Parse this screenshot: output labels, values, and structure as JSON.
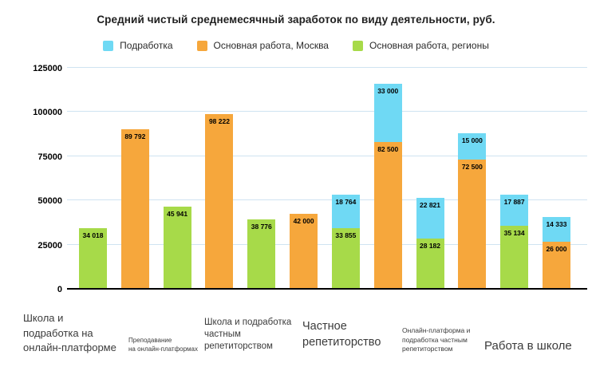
{
  "title": "Средний чистый среднемесячный заработок по виду деятельности, руб.",
  "chart_data": {
    "type": "bar",
    "stacked": true,
    "title": "Средний чистый среднемесячный заработок по виду деятельности, руб.",
    "xlabel": "",
    "ylabel": "",
    "ylim": [
      0,
      125000
    ],
    "yticks": [
      0,
      25000,
      50000,
      75000,
      100000,
      125000
    ],
    "grid": true,
    "legend_position": "top",
    "series": [
      {
        "name": "Подработка",
        "color": "#6fd9f4"
      },
      {
        "name": "Основная работа, Москва",
        "color": "#f6a73c"
      },
      {
        "name": "Основная работа, регионы",
        "color": "#a7da49"
      }
    ],
    "groups": [
      {
        "category": "Школа и\nподработка на\nонлайн-платформе",
        "bars": [
          {
            "segments": [
              {
                "series": "Основная работа, регионы",
                "value": 34018,
                "label": "34 018"
              }
            ]
          },
          {
            "segments": [
              {
                "series": "Основная работа, Москва",
                "value": 89792,
                "label": "89 792"
              }
            ]
          }
        ]
      },
      {
        "category": "Преподавание\nна онлайн-платформах",
        "bars": [
          {
            "segments": [
              {
                "series": "Основная работа, регионы",
                "value": 45941,
                "label": "45 941"
              }
            ]
          },
          {
            "segments": [
              {
                "series": "Основная работа, Москва",
                "value": 98222,
                "label": "98 222"
              }
            ]
          }
        ]
      },
      {
        "category": "Школа и подработка\nчастным\nрепетиторством",
        "bars": [
          {
            "segments": [
              {
                "series": "Основная работа, регионы",
                "value": 38776,
                "label": "38 776"
              }
            ]
          },
          {
            "segments": [
              {
                "series": "Основная работа, Москва",
                "value": 42000,
                "label": "42 000"
              }
            ]
          }
        ]
      },
      {
        "category": "Частное\nрепетиторство",
        "bars": [
          {
            "segments": [
              {
                "series": "Основная работа, регионы",
                "value": 33855,
                "label": "33 855"
              },
              {
                "series": "Подработка",
                "value": 18764,
                "label": "18 764"
              }
            ]
          },
          {
            "segments": [
              {
                "series": "Основная работа, Москва",
                "value": 82500,
                "label": "82 500"
              },
              {
                "series": "Подработка",
                "value": 33000,
                "label": "33 000"
              }
            ]
          }
        ]
      },
      {
        "category": "Онлайн-платформа и\nподработка частным\nрепетиторством",
        "bars": [
          {
            "segments": [
              {
                "series": "Основная работа, регионы",
                "value": 28182,
                "label": "28 182"
              },
              {
                "series": "Подработка",
                "value": 22821,
                "label": "22 821"
              }
            ]
          },
          {
            "segments": [
              {
                "series": "Основная работа, Москва",
                "value": 72500,
                "label": "72 500"
              },
              {
                "series": "Подработка",
                "value": 15000,
                "label": "15 000"
              }
            ]
          }
        ]
      },
      {
        "category": "Работа в школе",
        "bars": [
          {
            "segments": [
              {
                "series": "Основная работа, регионы",
                "value": 35134,
                "label": "35 134"
              },
              {
                "series": "Подработка",
                "value": 17887,
                "label": "17 887"
              }
            ]
          },
          {
            "segments": [
              {
                "series": "Основная работа, Москва",
                "value": 26000,
                "label": "26 000"
              },
              {
                "series": "Подработка",
                "value": 14333,
                "label": "14 333"
              }
            ]
          }
        ]
      }
    ]
  }
}
